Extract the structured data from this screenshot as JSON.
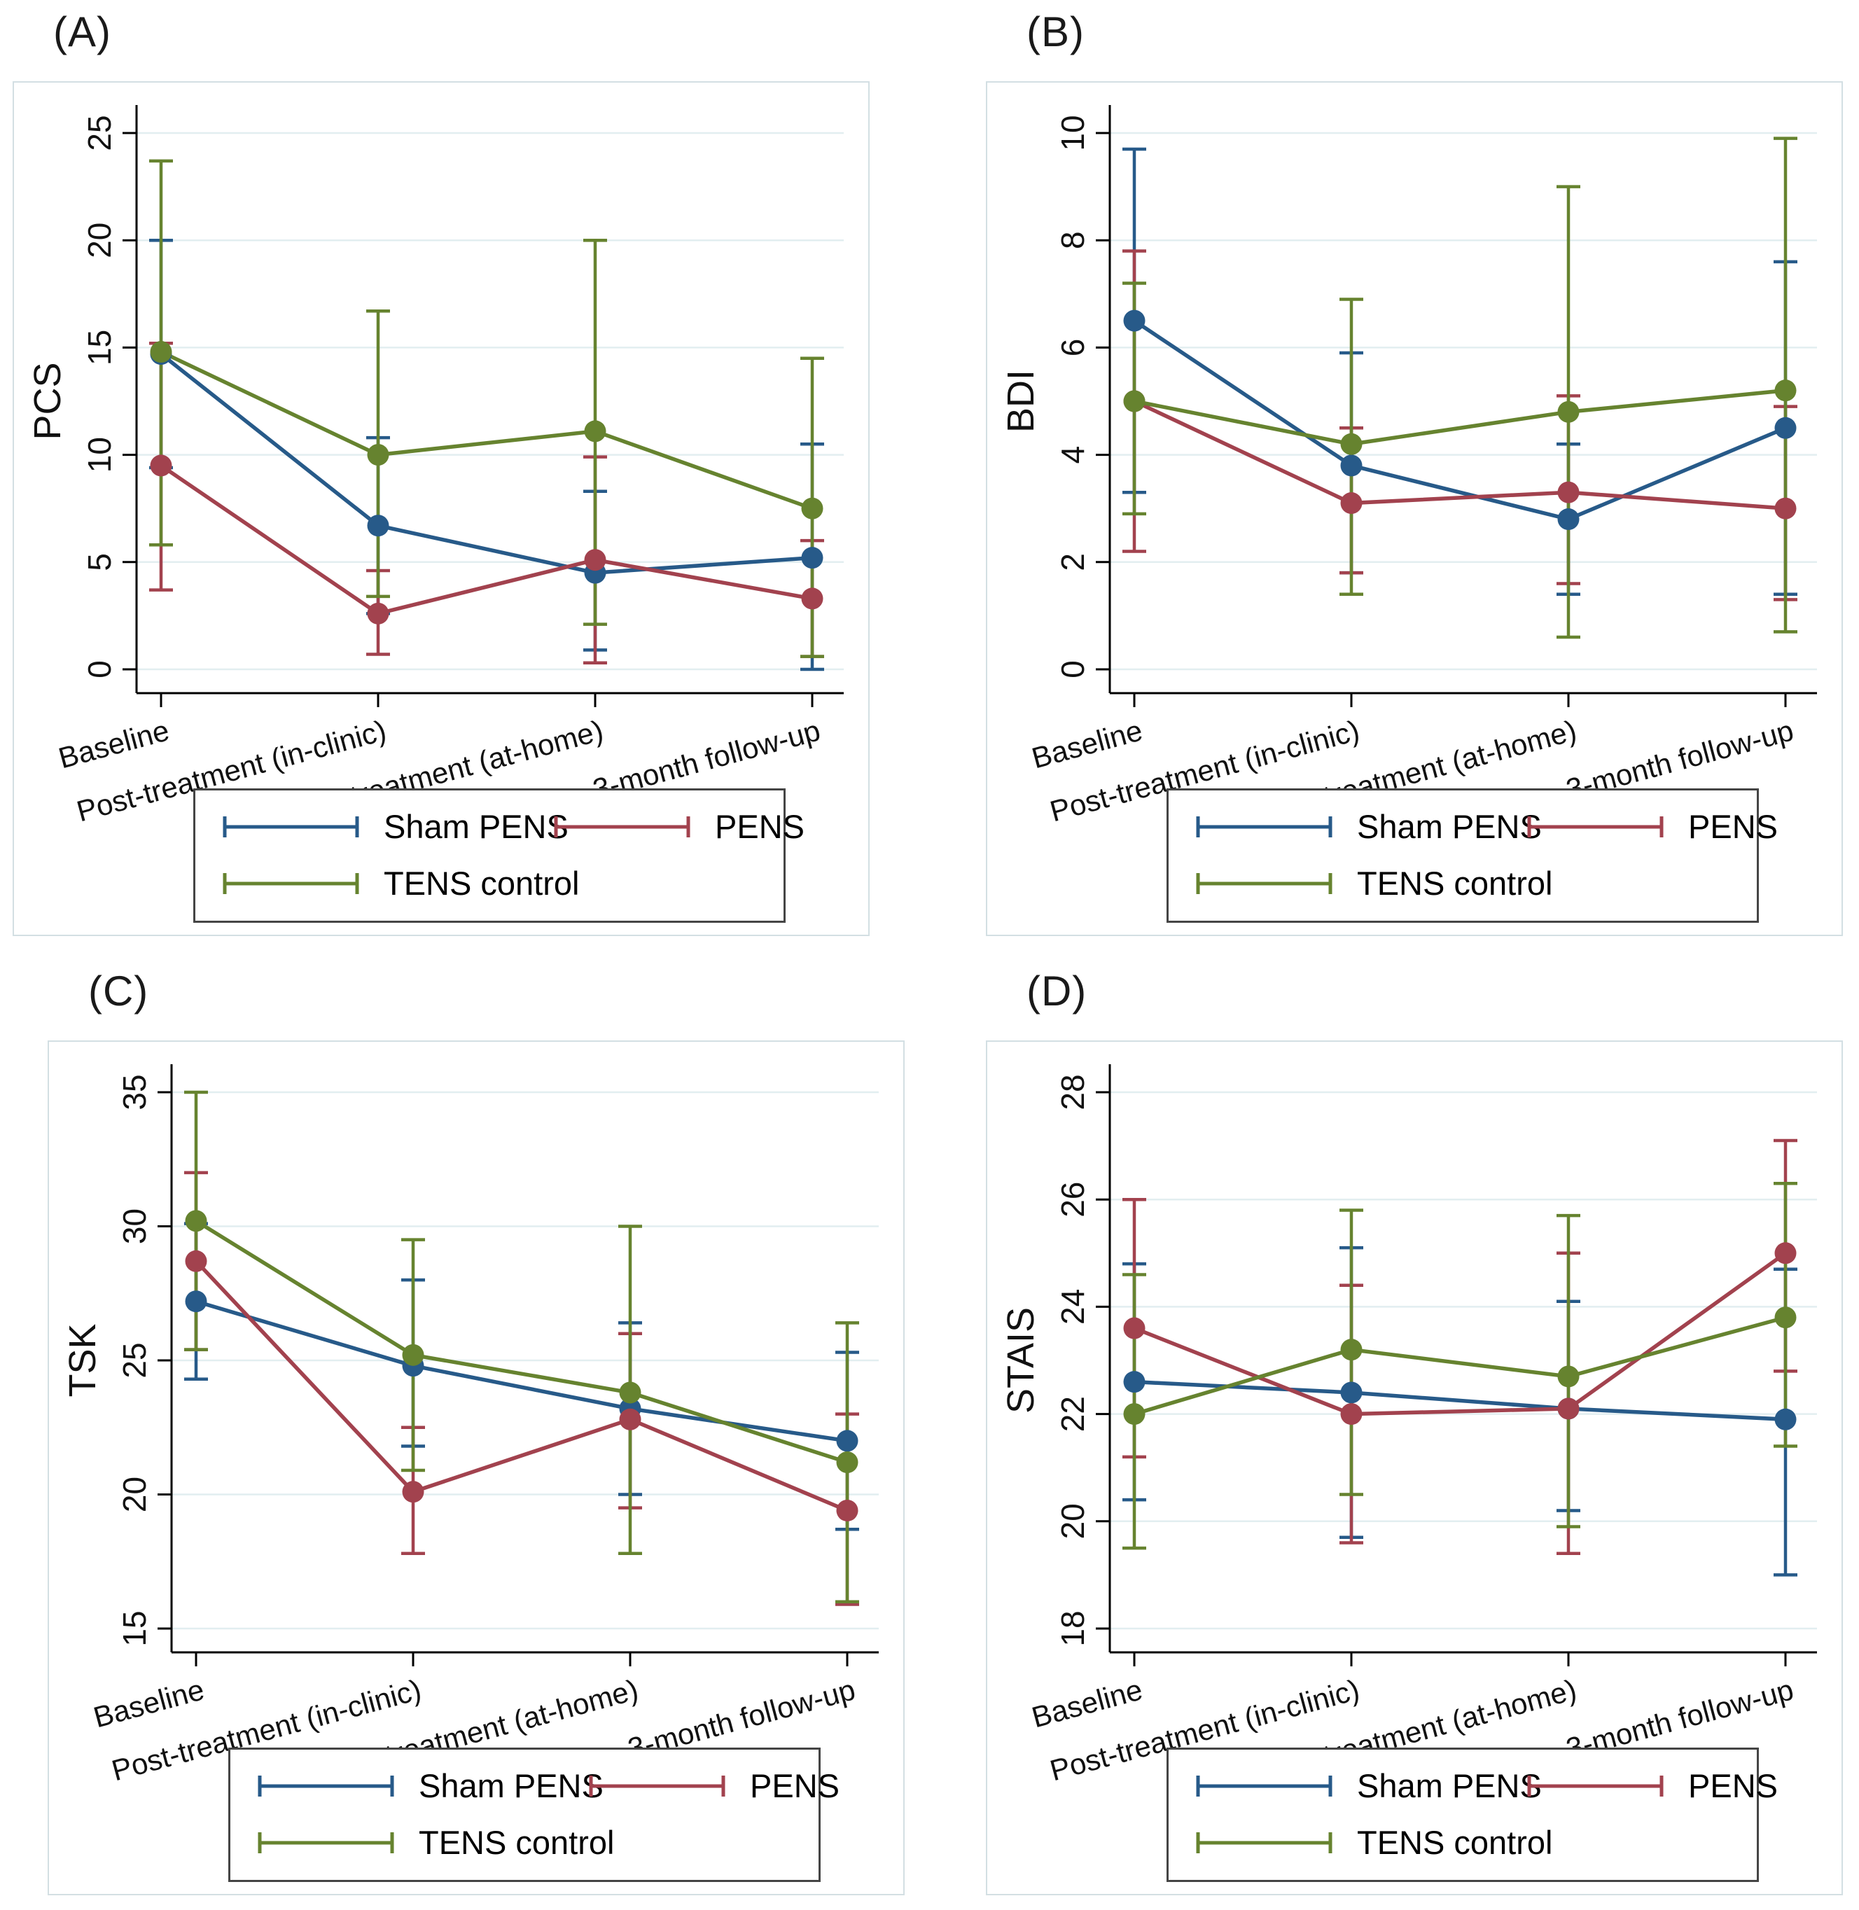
{
  "page": {
    "background": "#ffffff"
  },
  "categories": [
    "Baseline",
    "Post-treatment (in-clinic)",
    "Post-treatment (at-home)",
    "3-month follow-up"
  ],
  "legend": {
    "items": [
      {
        "label": "Sham PENS",
        "color": "#275a89"
      },
      {
        "label": "PENS",
        "color": "#a2424e"
      },
      {
        "label": "TENS control",
        "color": "#66832f"
      }
    ]
  },
  "colors": {
    "grid": "#e2eef0",
    "axis": "#000000",
    "tick_text": "#111111",
    "frame_border": "#d3dfe3",
    "legend_border": "#454545",
    "sham_pens": "#275a89",
    "pens": "#a2424e",
    "tens_control": "#66832f"
  },
  "chart_data": [
    {
      "type": "line",
      "title": "(A)",
      "ylabel": "PCS",
      "xlabel": "",
      "ylim": [
        0,
        25
      ],
      "yticks": [
        0,
        5,
        10,
        15,
        20,
        25
      ],
      "grid": true,
      "legend_position": "bottom",
      "categories": [
        "Baseline",
        "Post-treatment (in-clinic)",
        "Post-treatment (at-home)",
        "3-month follow-up"
      ],
      "series": [
        {
          "name": "Sham PENS",
          "color": "#275a89",
          "values": [
            14.7,
            6.7,
            4.5,
            5.2
          ],
          "ci_low": [
            9.4,
            2.6,
            0.9,
            0.0
          ],
          "ci_high": [
            20.0,
            10.8,
            8.3,
            10.5
          ]
        },
        {
          "name": "PENS",
          "color": "#a2424e",
          "values": [
            9.5,
            2.6,
            5.1,
            3.3
          ],
          "ci_low": [
            3.7,
            0.7,
            0.3,
            0.6
          ],
          "ci_high": [
            15.2,
            4.6,
            9.9,
            6.0
          ]
        },
        {
          "name": "TENS control",
          "color": "#66832f",
          "values": [
            14.8,
            10.0,
            11.1,
            7.5
          ],
          "ci_low": [
            5.8,
            3.4,
            2.1,
            0.6
          ],
          "ci_high": [
            23.7,
            16.7,
            20.0,
            14.5
          ]
        }
      ]
    },
    {
      "type": "line",
      "title": "(B)",
      "ylabel": "BDI",
      "xlabel": "",
      "ylim": [
        0,
        10
      ],
      "yticks": [
        0,
        2,
        4,
        6,
        8,
        10
      ],
      "grid": true,
      "legend_position": "bottom",
      "categories": [
        "Baseline",
        "Post-treatment (in-clinic)",
        "Post-treatment (at-home)",
        "3-month follow-up"
      ],
      "series": [
        {
          "name": "Sham PENS",
          "color": "#275a89",
          "values": [
            6.5,
            3.8,
            2.8,
            4.5
          ],
          "ci_low": [
            3.3,
            1.8,
            1.4,
            1.4
          ],
          "ci_high": [
            9.7,
            5.9,
            4.2,
            7.6
          ]
        },
        {
          "name": "PENS",
          "color": "#a2424e",
          "values": [
            5.0,
            3.1,
            3.3,
            3.0
          ],
          "ci_low": [
            2.2,
            1.8,
            1.6,
            1.3
          ],
          "ci_high": [
            7.8,
            4.5,
            5.1,
            4.9
          ]
        },
        {
          "name": "TENS control",
          "color": "#66832f",
          "values": [
            5.0,
            4.2,
            4.8,
            5.2
          ],
          "ci_low": [
            2.9,
            1.4,
            0.6,
            0.7
          ],
          "ci_high": [
            7.2,
            6.9,
            9.0,
            9.9
          ]
        }
      ]
    },
    {
      "type": "line",
      "title": "(C)",
      "ylabel": "TSK",
      "xlabel": "",
      "ylim": [
        15,
        35
      ],
      "yticks": [
        15,
        20,
        25,
        30,
        35
      ],
      "grid": true,
      "legend_position": "bottom",
      "categories": [
        "Baseline",
        "Post-treatment (in-clinic)",
        "Post-treatment (at-home)",
        "3-month follow-up"
      ],
      "series": [
        {
          "name": "Sham PENS",
          "color": "#275a89",
          "values": [
            27.2,
            24.8,
            23.2,
            22.0
          ],
          "ci_low": [
            24.3,
            21.8,
            20.0,
            18.7
          ],
          "ci_high": [
            30.1,
            28.0,
            26.4,
            25.3
          ]
        },
        {
          "name": "PENS",
          "color": "#a2424e",
          "values": [
            28.7,
            20.1,
            22.8,
            19.4
          ],
          "ci_low": [
            25.4,
            17.8,
            19.5,
            15.9
          ],
          "ci_high": [
            32.0,
            22.5,
            26.0,
            23.0
          ]
        },
        {
          "name": "TENS control",
          "color": "#66832f",
          "values": [
            30.2,
            25.2,
            23.8,
            21.2
          ],
          "ci_low": [
            25.4,
            20.9,
            17.8,
            16.0
          ],
          "ci_high": [
            35.0,
            29.5,
            30.0,
            26.4
          ]
        }
      ]
    },
    {
      "type": "line",
      "title": "(D)",
      "ylabel": "STAIS",
      "xlabel": "",
      "ylim": [
        18,
        28
      ],
      "yticks": [
        18,
        20,
        22,
        24,
        26,
        28
      ],
      "grid": true,
      "legend_position": "bottom",
      "categories": [
        "Baseline",
        "Post-treatment (in-clinic)",
        "Post-treatment (at-home)",
        "3-month follow-up"
      ],
      "series": [
        {
          "name": "Sham PENS",
          "color": "#275a89",
          "values": [
            22.6,
            22.4,
            22.1,
            21.9
          ],
          "ci_low": [
            20.4,
            19.7,
            20.2,
            19.0
          ],
          "ci_high": [
            24.8,
            25.1,
            24.1,
            24.7
          ]
        },
        {
          "name": "PENS",
          "color": "#a2424e",
          "values": [
            23.6,
            22.0,
            22.1,
            25.0
          ],
          "ci_low": [
            21.2,
            19.6,
            19.4,
            22.8
          ],
          "ci_high": [
            26.0,
            24.4,
            25.0,
            27.1
          ]
        },
        {
          "name": "TENS control",
          "color": "#66832f",
          "values": [
            22.0,
            23.2,
            22.7,
            23.8
          ],
          "ci_low": [
            19.5,
            20.5,
            19.9,
            21.4
          ],
          "ci_high": [
            24.6,
            25.8,
            25.7,
            26.3
          ]
        }
      ]
    }
  ]
}
